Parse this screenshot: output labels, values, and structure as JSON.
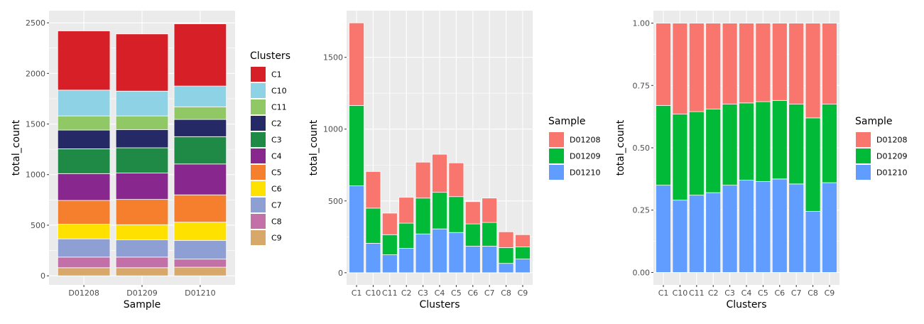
{
  "chart_data": [
    {
      "type": "bar",
      "stacked": true,
      "xlabel": "Sample",
      "ylabel": "total_count",
      "categories": [
        "D01208",
        "D01209",
        "D01210"
      ],
      "yticks": [
        0,
        500,
        1000,
        1500,
        2000,
        2500
      ],
      "ytick_labels": [
        "0",
        "500",
        "1000",
        "1500",
        "2000",
        "2500"
      ],
      "ylim": [
        -90,
        2620
      ],
      "grid": true,
      "legend_title": "Clusters",
      "legend_position": "right",
      "series": [
        {
          "name": "C9",
          "color": "#D8A76A",
          "values": [
            80,
            80,
            85
          ]
        },
        {
          "name": "C8",
          "color": "#C36FA8",
          "values": [
            105,
            105,
            80
          ]
        },
        {
          "name": "C7",
          "color": "#8D9FD3",
          "values": [
            180,
            170,
            185
          ]
        },
        {
          "name": "C6",
          "color": "#FFE100",
          "values": [
            145,
            150,
            180
          ]
        },
        {
          "name": "C5",
          "color": "#F57F2C",
          "values": [
            235,
            250,
            270
          ]
        },
        {
          "name": "C4",
          "color": "#88288E",
          "values": [
            265,
            260,
            305
          ]
        },
        {
          "name": "C3",
          "color": "#1F8A45",
          "values": [
            245,
            250,
            270
          ]
        },
        {
          "name": "C2",
          "color": "#252A66",
          "values": [
            185,
            180,
            170
          ]
        },
        {
          "name": "C11",
          "color": "#90C865",
          "values": [
            140,
            135,
            125
          ]
        },
        {
          "name": "C10",
          "color": "#8DD3E5",
          "values": [
            255,
            245,
            205
          ]
        },
        {
          "name": "C1",
          "color": "#D61F26",
          "values": [
            585,
            565,
            615
          ]
        }
      ],
      "legend_order": [
        "C1",
        "C10",
        "C11",
        "C2",
        "C3",
        "C4",
        "C5",
        "C6",
        "C7",
        "C8",
        "C9"
      ]
    },
    {
      "type": "bar",
      "stacked": true,
      "xlabel": "Clusters",
      "ylabel": "total_count",
      "categories": [
        "C1",
        "C10",
        "C11",
        "C2",
        "C3",
        "C4",
        "C5",
        "C6",
        "C7",
        "C8",
        "C9"
      ],
      "yticks": [
        0,
        500,
        1000,
        1500
      ],
      "ytick_labels": [
        "0",
        "500",
        "1000",
        "1500"
      ],
      "ylim": [
        -85,
        1825
      ],
      "grid": true,
      "legend_title": "Sample",
      "legend_position": "right",
      "series": [
        {
          "name": "D01210",
          "color": "#619CFF",
          "values": [
            605,
            205,
            125,
            170,
            270,
            305,
            280,
            185,
            185,
            65,
            95
          ]
        },
        {
          "name": "D01209",
          "color": "#00BA38",
          "values": [
            560,
            245,
            140,
            175,
            250,
            255,
            250,
            155,
            165,
            110,
            85
          ]
        },
        {
          "name": "D01208",
          "color": "#F8766D",
          "values": [
            575,
            255,
            150,
            180,
            250,
            265,
            235,
            155,
            170,
            110,
            85
          ]
        }
      ],
      "legend_order": [
        "D01208",
        "D01209",
        "D01210"
      ]
    },
    {
      "type": "bar",
      "stacked": true,
      "normalized": true,
      "xlabel": "Clusters",
      "ylabel": "total_count",
      "categories": [
        "C1",
        "C10",
        "C11",
        "C2",
        "C3",
        "C4",
        "C5",
        "C6",
        "C7",
        "C8",
        "C9"
      ],
      "yticks": [
        0,
        0.25,
        0.5,
        0.75,
        1.0
      ],
      "ytick_labels": [
        "0.00",
        "0.25",
        "0.50",
        "0.75",
        "1.00"
      ],
      "ylim": [
        -0.05,
        1.05
      ],
      "grid": true,
      "legend_title": "Sample",
      "legend_position": "right",
      "series": [
        {
          "name": "D01210",
          "color": "#619CFF",
          "values": [
            0.35,
            0.29,
            0.31,
            0.32,
            0.35,
            0.37,
            0.365,
            0.375,
            0.355,
            0.245,
            0.36
          ]
        },
        {
          "name": "D01209",
          "color": "#00BA38",
          "values": [
            0.32,
            0.345,
            0.335,
            0.335,
            0.325,
            0.31,
            0.32,
            0.315,
            0.32,
            0.375,
            0.315
          ]
        },
        {
          "name": "D01208",
          "color": "#F8766D",
          "values": [
            0.33,
            0.365,
            0.355,
            0.345,
            0.325,
            0.32,
            0.315,
            0.31,
            0.325,
            0.38,
            0.325
          ]
        }
      ],
      "legend_order": [
        "D01208",
        "D01209",
        "D01210"
      ]
    }
  ]
}
